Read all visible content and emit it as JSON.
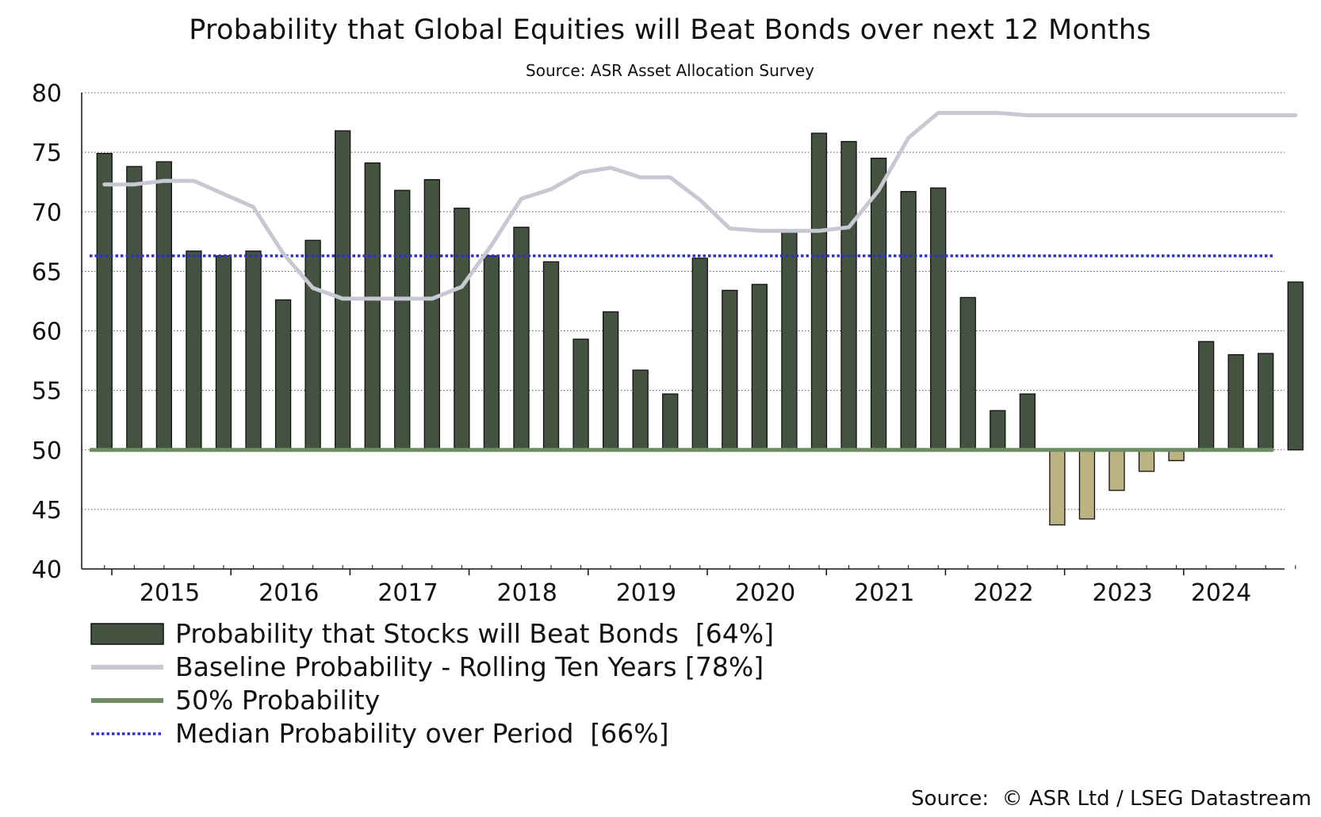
{
  "chart_data": {
    "type": "bar",
    "title": "Probability that Global Equities will Beat Bonds over next 12 Months",
    "subtitle": "Source: ASR Asset Allocation Survey",
    "ylim": [
      40,
      80
    ],
    "yticks": [
      40,
      45,
      50,
      55,
      60,
      65,
      70,
      75,
      80
    ],
    "baseline_value": 50,
    "x_tick_labels": [
      "2015",
      "2016",
      "2017",
      "2018",
      "2019",
      "2020",
      "2021",
      "2022",
      "2023",
      "2024"
    ],
    "grid": "horizontal-dotted",
    "series": [
      {
        "name": "Probability that Stocks will Beat Bonds [64%]",
        "kind": "bar",
        "values": [
          74.9,
          73.8,
          74.2,
          66.7,
          66.3,
          66.7,
          62.6,
          67.6,
          76.8,
          74.1,
          71.8,
          72.7,
          70.3,
          66.3,
          68.7,
          65.8,
          59.3,
          61.6,
          56.7,
          54.7,
          66.1,
          63.4,
          63.9,
          68.5,
          76.6,
          75.9,
          74.5,
          71.7,
          72.0,
          62.8,
          53.3,
          54.7,
          43.7,
          44.2,
          46.6,
          48.2,
          49.1,
          59.1,
          58.0,
          58.1,
          64.1
        ]
      },
      {
        "name": "Baseline Probability - Rolling Ten Years [78%]",
        "kind": "line",
        "values": [
          72.3,
          72.3,
          72.6,
          72.6,
          71.5,
          70.4,
          66.5,
          63.6,
          62.7,
          62.7,
          62.7,
          62.7,
          63.7,
          67.2,
          71.1,
          71.9,
          73.3,
          73.7,
          72.9,
          72.9,
          71.0,
          68.6,
          68.4,
          68.4,
          68.4,
          68.7,
          71.8,
          76.2,
          78.3,
          78.3,
          78.3,
          78.1,
          78.1,
          78.1,
          78.1,
          78.1,
          78.1,
          78.1,
          78.1,
          78.1,
          78.1
        ]
      },
      {
        "name": "50% Probability",
        "kind": "hline",
        "value": 50
      },
      {
        "name": "Median Probability over Period  [66%]",
        "kind": "hline",
        "value": 66.3
      }
    ],
    "colors": {
      "bar_above": "#435340",
      "bar_below": "#bdb382",
      "baseline_line": "#c8c8d2",
      "fifty_line": "#6e8c62",
      "median_line": "#2f2fd0",
      "grid": "#555555"
    }
  },
  "legend": {
    "stocks": "Probability that Stocks will Beat Bonds  [64%]",
    "baseline": "Baseline Probability - Rolling Ten Years [78%]",
    "fifty": "50% Probability",
    "median": "Median Probability over Period  [66%]"
  },
  "footer": {
    "source": "Source:  © ASR Ltd / LSEG Datastream"
  }
}
